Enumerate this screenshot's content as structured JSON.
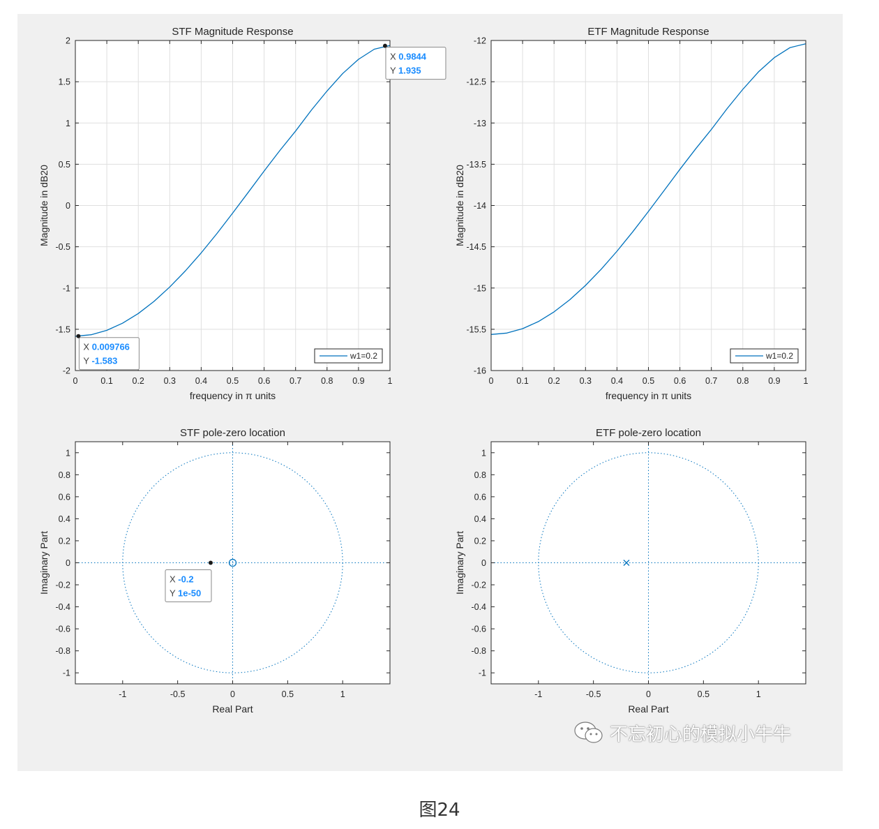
{
  "figure_caption": "图24",
  "watermark_text": "不忘初心的模拟小牛牛",
  "icons": {
    "watermark": "wechat-icon"
  },
  "colors": {
    "series": "#0072BD",
    "datatip_value": "#1a8cff",
    "grid": "#dfdfdf",
    "axes": "#262626",
    "background": "#f0f0f0"
  },
  "chart_data": [
    {
      "id": "stf_mag",
      "type": "line",
      "title": "STF Magnitude Response",
      "xlabel": "frequency in π units",
      "ylabel": "Magnitude in dB20",
      "xlim": [
        0,
        1
      ],
      "ylim": [
        -2,
        2
      ],
      "xticks": [
        0,
        0.1,
        0.2,
        0.3,
        0.4,
        0.5,
        0.6,
        0.7,
        0.8,
        0.9,
        1
      ],
      "xtick_labels": [
        "0",
        "0.1",
        "0.2",
        "0.3",
        "0.4",
        "0.5",
        "0.6",
        "0.7",
        "0.8",
        "0.9",
        "1"
      ],
      "yticks": [
        -2,
        -1.5,
        -1,
        -0.5,
        0,
        0.5,
        1,
        1.5,
        2
      ],
      "ytick_labels": [
        "-2",
        "-1.5",
        "-1",
        "-0.5",
        "0",
        "0.5",
        "1",
        "1.5",
        "2"
      ],
      "grid": true,
      "legend": {
        "placement": "bottom-right",
        "entries": [
          "w1=0.2"
        ]
      },
      "series": [
        {
          "name": "w1=0.2",
          "x": [
            0,
            0.05,
            0.1,
            0.15,
            0.2,
            0.25,
            0.3,
            0.35,
            0.4,
            0.45,
            0.5,
            0.55,
            0.6,
            0.65,
            0.7,
            0.75,
            0.8,
            0.85,
            0.9,
            0.95,
            1.0
          ],
          "y": [
            -1.584,
            -1.566,
            -1.513,
            -1.427,
            -1.309,
            -1.162,
            -0.988,
            -0.791,
            -0.574,
            -0.339,
            -0.092,
            0.162,
            0.418,
            0.667,
            0.902,
            1.155,
            1.388,
            1.6,
            1.772,
            1.894,
            1.94
          ]
        }
      ],
      "datatips": [
        {
          "x": 0.009766,
          "y": -1.583,
          "x_text": "0.009766",
          "y_text": "-1.583",
          "placement": "below-right"
        },
        {
          "x": 0.9844,
          "y": 1.935,
          "x_text": "0.9844",
          "y_text": "1.935",
          "placement": "below-right"
        }
      ]
    },
    {
      "id": "etf_mag",
      "type": "line",
      "title": "ETF Magnitude Response",
      "xlabel": "frequency in π units",
      "ylabel": "Magnitude in dB20",
      "xlim": [
        0,
        1
      ],
      "ylim": [
        -16,
        -12
      ],
      "xticks": [
        0,
        0.1,
        0.2,
        0.3,
        0.4,
        0.5,
        0.6,
        0.7,
        0.8,
        0.9,
        1
      ],
      "xtick_labels": [
        "0",
        "0.1",
        "0.2",
        "0.3",
        "0.4",
        "0.5",
        "0.6",
        "0.7",
        "0.8",
        "0.9",
        "1"
      ],
      "yticks": [
        -16,
        -15.5,
        -15,
        -14.5,
        -14,
        -13.5,
        -13,
        -12.5,
        -12
      ],
      "ytick_labels": [
        "-16",
        "-15.5",
        "-15",
        "-14.5",
        "-14",
        "-13.5",
        "-13",
        "-12.5",
        "-12"
      ],
      "grid": true,
      "legend": {
        "placement": "bottom-right",
        "entries": [
          "w1=0.2"
        ]
      },
      "series": [
        {
          "name": "w1=0.2",
          "x": [
            0,
            0.05,
            0.1,
            0.15,
            0.2,
            0.25,
            0.3,
            0.35,
            0.4,
            0.45,
            0.5,
            0.55,
            0.6,
            0.65,
            0.7,
            0.75,
            0.8,
            0.85,
            0.9,
            0.95,
            1.0
          ],
          "y": [
            -15.563,
            -15.546,
            -15.493,
            -15.407,
            -15.289,
            -15.142,
            -14.968,
            -14.771,
            -14.554,
            -14.319,
            -14.072,
            -13.818,
            -13.562,
            -13.313,
            -13.078,
            -12.825,
            -12.592,
            -12.38,
            -12.208,
            -12.086,
            -12.04
          ]
        }
      ],
      "datatips": []
    },
    {
      "id": "stf_pz",
      "type": "scatter",
      "title": "STF pole-zero location",
      "xlabel": "Real Part",
      "ylabel": "Imaginary Part",
      "xlim": [
        -1.43,
        1.43
      ],
      "ylim": [
        -1.1,
        1.1
      ],
      "xticks": [
        -1,
        -0.5,
        0,
        0.5,
        1
      ],
      "xtick_labels": [
        "-1",
        "-0.5",
        "0",
        "0.5",
        "1"
      ],
      "yticks": [
        -1,
        -0.8,
        -0.6,
        -0.4,
        -0.2,
        0,
        0.2,
        0.4,
        0.6,
        0.8,
        1
      ],
      "ytick_labels": [
        "-1",
        "-0.8",
        "-0.6",
        "-0.4",
        "-0.2",
        "0",
        "0.2",
        "0.4",
        "0.6",
        "0.8",
        "1"
      ],
      "grid": false,
      "unit_circle": true,
      "zeros": [
        {
          "re": 0,
          "im": 0
        }
      ],
      "poles": [],
      "datatips": [
        {
          "x": -0.2,
          "y": 1e-50,
          "x_text": "-0.2",
          "y_text": "1e-50",
          "placement": "below-left"
        }
      ]
    },
    {
      "id": "etf_pz",
      "type": "scatter",
      "title": "ETF pole-zero location",
      "xlabel": "Real Part",
      "ylabel": "Imaginary Part",
      "xlim": [
        -1.43,
        1.43
      ],
      "ylim": [
        -1.1,
        1.1
      ],
      "xticks": [
        -1,
        -0.5,
        0,
        0.5,
        1
      ],
      "xtick_labels": [
        "-1",
        "-0.5",
        "0",
        "0.5",
        "1"
      ],
      "yticks": [
        -1,
        -0.8,
        -0.6,
        -0.4,
        -0.2,
        0,
        0.2,
        0.4,
        0.6,
        0.8,
        1
      ],
      "ytick_labels": [
        "-1",
        "-0.8",
        "-0.6",
        "-0.4",
        "-0.2",
        "0",
        "0.2",
        "0.4",
        "0.6",
        "0.8",
        "1"
      ],
      "grid": false,
      "unit_circle": true,
      "zeros": [],
      "poles": [
        {
          "re": -0.2,
          "im": 0
        }
      ],
      "datatips": []
    }
  ]
}
